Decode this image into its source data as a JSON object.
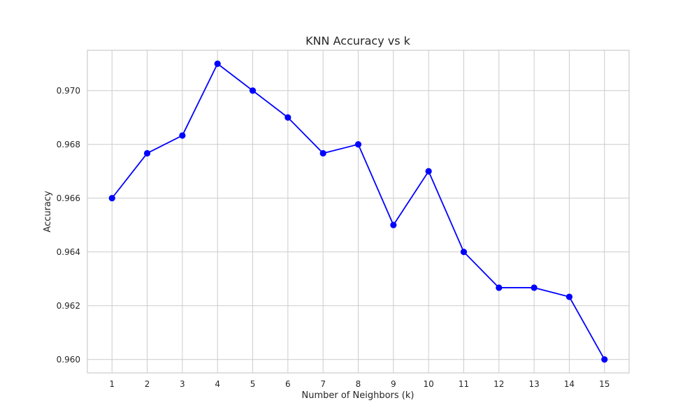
{
  "chart_data": {
    "type": "line",
    "title": "KNN Accuracy vs k",
    "xlabel": "Number of Neighbors (k)",
    "ylabel": "Accuracy",
    "x": [
      1,
      2,
      3,
      4,
      5,
      6,
      7,
      8,
      9,
      10,
      11,
      12,
      13,
      14,
      15
    ],
    "x_ticks": [
      "1",
      "2",
      "3",
      "4",
      "5",
      "6",
      "7",
      "8",
      "9",
      "10",
      "11",
      "12",
      "13",
      "14",
      "15"
    ],
    "y_ticks": [
      "0.960",
      "0.962",
      "0.964",
      "0.966",
      "0.968",
      "0.970"
    ],
    "y_tick_values": [
      0.96,
      0.962,
      0.964,
      0.966,
      0.968,
      0.97
    ],
    "xlim": [
      0.3,
      15.7
    ],
    "ylim": [
      0.9595,
      0.9715
    ],
    "grid": true,
    "series": [
      {
        "values": [
          0.966,
          0.96767,
          0.96833,
          0.971,
          0.97,
          0.969,
          0.96767,
          0.968,
          0.965,
          0.967,
          0.964,
          0.96267,
          0.96267,
          0.96233,
          0.96
        ],
        "color": "#0000ff",
        "marker": "circle"
      }
    ]
  }
}
